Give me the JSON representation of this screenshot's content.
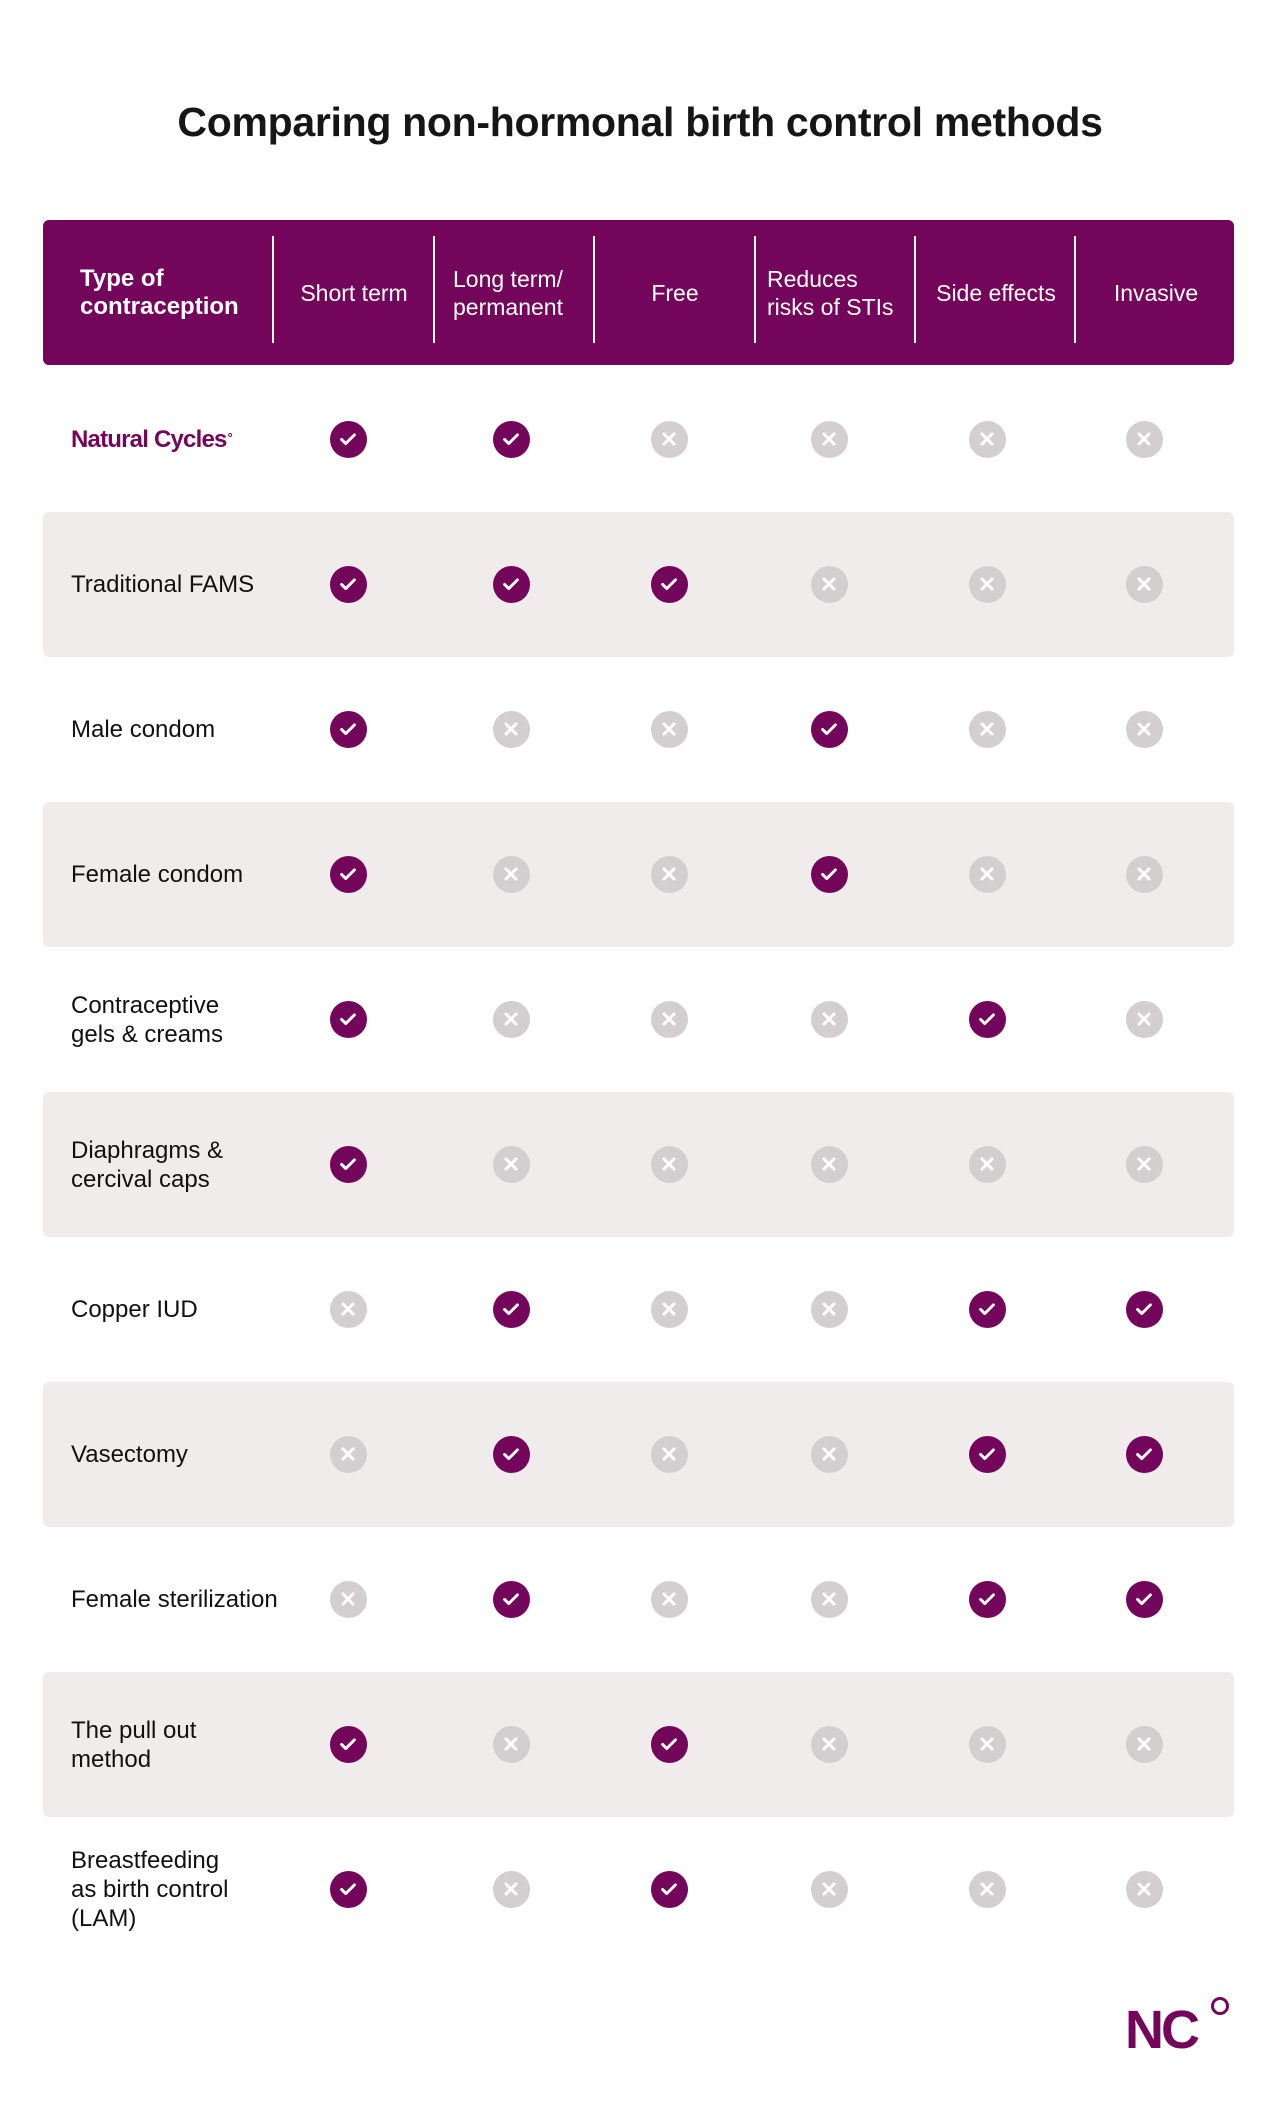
{
  "title": "Comparing non-hormonal birth control methods",
  "colors": {
    "brand": "#73055a",
    "check_bg": "#73055a",
    "cross_bg": "#d3cecf",
    "row_shade": "#f1ecec",
    "header_text": "#ffffff"
  },
  "header": {
    "columns": [
      {
        "label": "Type of\ncontraception"
      },
      {
        "label": "Short term"
      },
      {
        "label": "Long term/\npermanent"
      },
      {
        "label": "Free"
      },
      {
        "label": "Reduces\nrisks of STIs"
      },
      {
        "label": "Side effects"
      },
      {
        "label": "Invasive"
      }
    ]
  },
  "icons": {
    "yes": "check-circle-icon",
    "no": "x-circle-icon"
  },
  "rows": [
    {
      "label": "Natural Cycles",
      "brand_mark": "°",
      "is_brand": true,
      "values": [
        true,
        true,
        false,
        false,
        false,
        false
      ]
    },
    {
      "label": "Traditional FAMS",
      "values": [
        true,
        true,
        true,
        false,
        false,
        false
      ]
    },
    {
      "label": "Male condom",
      "values": [
        true,
        false,
        false,
        true,
        false,
        false
      ]
    },
    {
      "label": "Female condom",
      "values": [
        true,
        false,
        false,
        true,
        false,
        false
      ]
    },
    {
      "label": "Contraceptive\ngels & creams",
      "values": [
        true,
        false,
        false,
        false,
        true,
        false
      ]
    },
    {
      "label": "Diaphragms &\ncercival caps",
      "values": [
        true,
        false,
        false,
        false,
        false,
        false
      ]
    },
    {
      "label": "Copper IUD",
      "values": [
        false,
        true,
        false,
        false,
        true,
        true
      ]
    },
    {
      "label": "Vasectomy",
      "values": [
        false,
        true,
        false,
        false,
        true,
        true
      ]
    },
    {
      "label": "Female sterilization",
      "values": [
        false,
        true,
        false,
        false,
        true,
        true
      ]
    },
    {
      "label": "The pull out\nmethod",
      "values": [
        true,
        false,
        true,
        false,
        false,
        false
      ]
    },
    {
      "label": "Breastfeeding\nas birth control\n(LAM)",
      "values": [
        true,
        false,
        true,
        false,
        false,
        false
      ]
    }
  ],
  "footer_logo": {
    "text": "NC",
    "mark": "°"
  }
}
